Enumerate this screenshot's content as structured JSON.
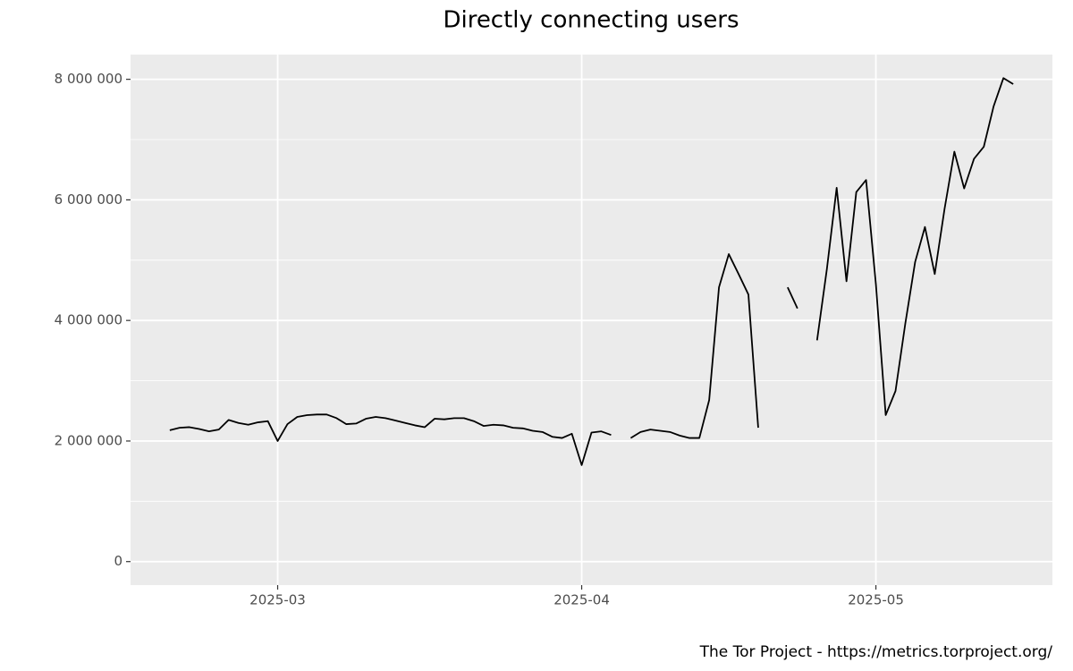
{
  "chart_data": {
    "type": "line",
    "title": "Directly connecting users",
    "caption": "The Tor Project - https://metrics.torproject.org/",
    "x": [
      "2025-02-18",
      "2025-02-19",
      "2025-02-20",
      "2025-02-21",
      "2025-02-22",
      "2025-02-23",
      "2025-02-24",
      "2025-02-25",
      "2025-02-26",
      "2025-02-27",
      "2025-02-28",
      "2025-03-01",
      "2025-03-02",
      "2025-03-03",
      "2025-03-04",
      "2025-03-05",
      "2025-03-06",
      "2025-03-07",
      "2025-03-08",
      "2025-03-09",
      "2025-03-10",
      "2025-03-11",
      "2025-03-12",
      "2025-03-13",
      "2025-03-14",
      "2025-03-15",
      "2025-03-16",
      "2025-03-17",
      "2025-03-18",
      "2025-03-19",
      "2025-03-20",
      "2025-03-21",
      "2025-03-22",
      "2025-03-23",
      "2025-03-24",
      "2025-03-25",
      "2025-03-26",
      "2025-03-27",
      "2025-03-28",
      "2025-03-29",
      "2025-03-30",
      "2025-03-31",
      "2025-04-01",
      "2025-04-02",
      "2025-04-03",
      "2025-04-04",
      "2025-04-05",
      "2025-04-06",
      "2025-04-07",
      "2025-04-08",
      "2025-04-09",
      "2025-04-10",
      "2025-04-11",
      "2025-04-12",
      "2025-04-13",
      "2025-04-14",
      "2025-04-15",
      "2025-04-16",
      "2025-04-17",
      "2025-04-18",
      "2025-04-19",
      "2025-04-20",
      "2025-04-21",
      "2025-04-22",
      "2025-04-23",
      "2025-04-24",
      "2025-04-25",
      "2025-04-26",
      "2025-04-27",
      "2025-04-28",
      "2025-04-29",
      "2025-04-30",
      "2025-05-01",
      "2025-05-02",
      "2025-05-03",
      "2025-05-04",
      "2025-05-05",
      "2025-05-06",
      "2025-05-07",
      "2025-05-08",
      "2025-05-09",
      "2025-05-10",
      "2025-05-11",
      "2025-05-12",
      "2025-05-13",
      "2025-05-14",
      "2025-05-15"
    ],
    "series": [
      {
        "name": "Directly connecting users",
        "color": "#000000",
        "values": [
          2180000,
          2220000,
          2230000,
          2200000,
          2160000,
          2190000,
          2350000,
          2300000,
          2270000,
          2310000,
          2330000,
          2000000,
          2280000,
          2400000,
          2430000,
          2440000,
          2440000,
          2380000,
          2280000,
          2290000,
          2370000,
          2400000,
          2380000,
          2340000,
          2300000,
          2260000,
          2230000,
          2370000,
          2360000,
          2380000,
          2380000,
          2330000,
          2250000,
          2270000,
          2260000,
          2220000,
          2210000,
          2170000,
          2150000,
          2070000,
          2050000,
          2120000,
          1600000,
          2140000,
          2160000,
          2100000,
          null,
          2050000,
          2150000,
          2190000,
          2170000,
          2150000,
          2090000,
          2050000,
          2050000,
          2680000,
          4550000,
          5100000,
          4770000,
          4430000,
          2220000,
          null,
          null,
          4550000,
          4200000,
          null,
          3670000,
          4850000,
          6200000,
          4650000,
          6130000,
          6330000,
          4600000,
          2430000,
          2830000,
          3950000,
          4970000,
          5550000,
          4770000,
          5850000,
          6800000,
          6190000,
          6680000,
          6880000,
          7550000,
          8020000,
          7920000
        ]
      }
    ],
    "xlim": [
      "2025-02-14",
      "2025-05-19"
    ],
    "xticks": [
      "2025-03",
      "2025-04",
      "2025-05"
    ],
    "ylim": [
      -390000,
      8410000
    ],
    "yticks": [
      0,
      {
        "value": 2000000,
        "label": "2 000 000"
      },
      {
        "value": 4000000,
        "label": "4 000 000"
      },
      {
        "value": 6000000,
        "label": "6 000 000"
      },
      {
        "value": 8000000,
        "label": "8 000 000"
      }
    ],
    "minor_yticks": [
      1000000,
      3000000,
      5000000,
      7000000
    ],
    "grid": true
  }
}
